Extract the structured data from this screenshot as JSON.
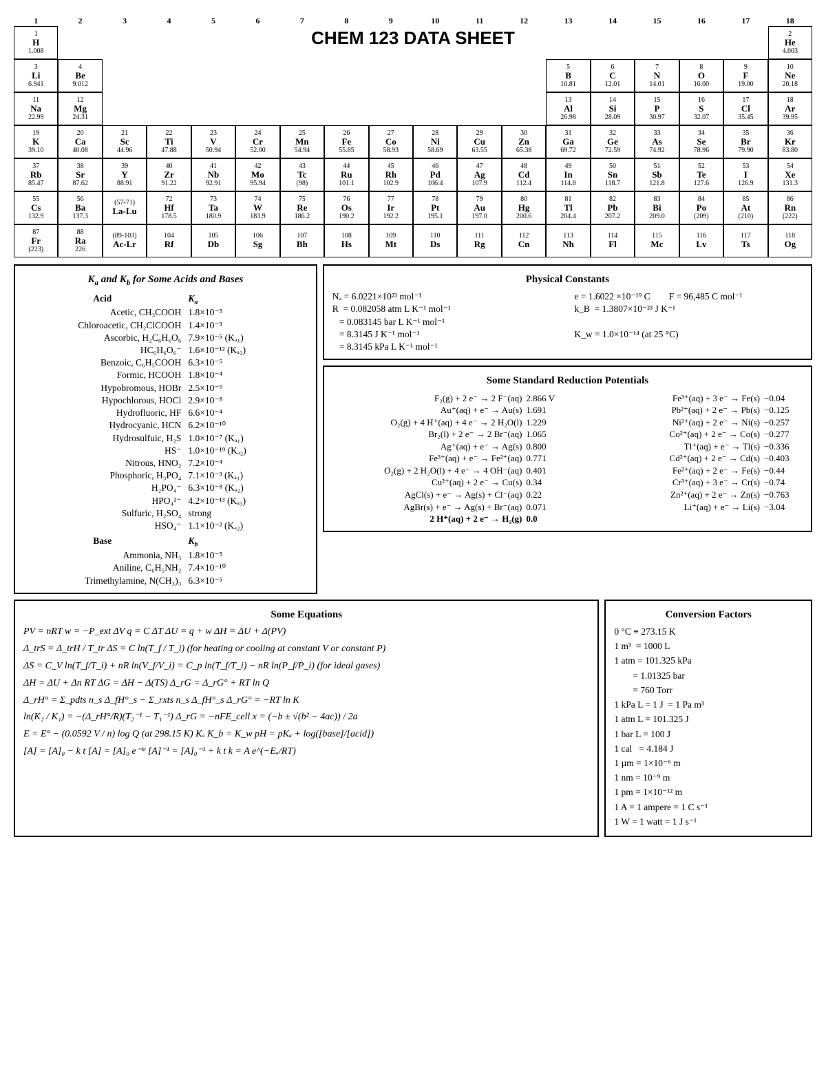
{
  "title": "CHEM 123 DATA SHEET",
  "periodic": {
    "groups": [
      1,
      2,
      3,
      4,
      5,
      6,
      7,
      8,
      9,
      10,
      11,
      12,
      13,
      14,
      15,
      16,
      17,
      18
    ],
    "elements": [
      {
        "z": 1,
        "sym": "H",
        "m": "1.008",
        "r": 1,
        "c": 1
      },
      {
        "z": 2,
        "sym": "He",
        "m": "4.003",
        "r": 1,
        "c": 18
      },
      {
        "z": 3,
        "sym": "Li",
        "m": "6.941",
        "r": 2,
        "c": 1
      },
      {
        "z": 4,
        "sym": "Be",
        "m": "9.012",
        "r": 2,
        "c": 2
      },
      {
        "z": 5,
        "sym": "B",
        "m": "10.81",
        "r": 2,
        "c": 13
      },
      {
        "z": 6,
        "sym": "C",
        "m": "12.01",
        "r": 2,
        "c": 14
      },
      {
        "z": 7,
        "sym": "N",
        "m": "14.01",
        "r": 2,
        "c": 15
      },
      {
        "z": 8,
        "sym": "O",
        "m": "16.00",
        "r": 2,
        "c": 16
      },
      {
        "z": 9,
        "sym": "F",
        "m": "19.00",
        "r": 2,
        "c": 17
      },
      {
        "z": 10,
        "sym": "Ne",
        "m": "20.18",
        "r": 2,
        "c": 18
      },
      {
        "z": 11,
        "sym": "Na",
        "m": "22.99",
        "r": 3,
        "c": 1
      },
      {
        "z": 12,
        "sym": "Mg",
        "m": "24.31",
        "r": 3,
        "c": 2
      },
      {
        "z": 13,
        "sym": "Al",
        "m": "26.98",
        "r": 3,
        "c": 13
      },
      {
        "z": 14,
        "sym": "Si",
        "m": "28.09",
        "r": 3,
        "c": 14
      },
      {
        "z": 15,
        "sym": "P",
        "m": "30.97",
        "r": 3,
        "c": 15
      },
      {
        "z": 16,
        "sym": "S",
        "m": "32.07",
        "r": 3,
        "c": 16
      },
      {
        "z": 17,
        "sym": "Cl",
        "m": "35.45",
        "r": 3,
        "c": 17
      },
      {
        "z": 18,
        "sym": "Ar",
        "m": "39.95",
        "r": 3,
        "c": 18
      },
      {
        "z": 19,
        "sym": "K",
        "m": "39.10",
        "r": 4,
        "c": 1
      },
      {
        "z": 20,
        "sym": "Ca",
        "m": "40.08",
        "r": 4,
        "c": 2
      },
      {
        "z": 21,
        "sym": "Sc",
        "m": "44.96",
        "r": 4,
        "c": 3
      },
      {
        "z": 22,
        "sym": "Ti",
        "m": "47.88",
        "r": 4,
        "c": 4
      },
      {
        "z": 23,
        "sym": "V",
        "m": "50.94",
        "r": 4,
        "c": 5
      },
      {
        "z": 24,
        "sym": "Cr",
        "m": "52.00",
        "r": 4,
        "c": 6
      },
      {
        "z": 25,
        "sym": "Mn",
        "m": "54.94",
        "r": 4,
        "c": 7
      },
      {
        "z": 26,
        "sym": "Fe",
        "m": "55.85",
        "r": 4,
        "c": 8
      },
      {
        "z": 27,
        "sym": "Co",
        "m": "58.93",
        "r": 4,
        "c": 9
      },
      {
        "z": 28,
        "sym": "Ni",
        "m": "58.69",
        "r": 4,
        "c": 10
      },
      {
        "z": 29,
        "sym": "Cu",
        "m": "63.55",
        "r": 4,
        "c": 11
      },
      {
        "z": 30,
        "sym": "Zn",
        "m": "65.38",
        "r": 4,
        "c": 12
      },
      {
        "z": 31,
        "sym": "Ga",
        "m": "69.72",
        "r": 4,
        "c": 13
      },
      {
        "z": 32,
        "sym": "Ge",
        "m": "72.59",
        "r": 4,
        "c": 14
      },
      {
        "z": 33,
        "sym": "As",
        "m": "74.92",
        "r": 4,
        "c": 15
      },
      {
        "z": 34,
        "sym": "Se",
        "m": "78.96",
        "r": 4,
        "c": 16
      },
      {
        "z": 35,
        "sym": "Br",
        "m": "79.90",
        "r": 4,
        "c": 17
      },
      {
        "z": 36,
        "sym": "Kr",
        "m": "83.80",
        "r": 4,
        "c": 18
      },
      {
        "z": 37,
        "sym": "Rb",
        "m": "85.47",
        "r": 5,
        "c": 1
      },
      {
        "z": 38,
        "sym": "Sr",
        "m": "87.62",
        "r": 5,
        "c": 2
      },
      {
        "z": 39,
        "sym": "Y",
        "m": "88.91",
        "r": 5,
        "c": 3
      },
      {
        "z": 40,
        "sym": "Zr",
        "m": "91.22",
        "r": 5,
        "c": 4
      },
      {
        "z": 41,
        "sym": "Nb",
        "m": "92.91",
        "r": 5,
        "c": 5
      },
      {
        "z": 42,
        "sym": "Mo",
        "m": "95.94",
        "r": 5,
        "c": 6
      },
      {
        "z": 43,
        "sym": "Tc",
        "m": "(98)",
        "r": 5,
        "c": 7
      },
      {
        "z": 44,
        "sym": "Ru",
        "m": "101.1",
        "r": 5,
        "c": 8
      },
      {
        "z": 45,
        "sym": "Rh",
        "m": "102.9",
        "r": 5,
        "c": 9
      },
      {
        "z": 46,
        "sym": "Pd",
        "m": "106.4",
        "r": 5,
        "c": 10
      },
      {
        "z": 47,
        "sym": "Ag",
        "m": "107.9",
        "r": 5,
        "c": 11
      },
      {
        "z": 48,
        "sym": "Cd",
        "m": "112.4",
        "r": 5,
        "c": 12
      },
      {
        "z": 49,
        "sym": "In",
        "m": "114.8",
        "r": 5,
        "c": 13
      },
      {
        "z": 50,
        "sym": "Sn",
        "m": "118.7",
        "r": 5,
        "c": 14
      },
      {
        "z": 51,
        "sym": "Sb",
        "m": "121.8",
        "r": 5,
        "c": 15
      },
      {
        "z": 52,
        "sym": "Te",
        "m": "127.6",
        "r": 5,
        "c": 16
      },
      {
        "z": 53,
        "sym": "I",
        "m": "126.9",
        "r": 5,
        "c": 17
      },
      {
        "z": 54,
        "sym": "Xe",
        "m": "131.3",
        "r": 5,
        "c": 18
      },
      {
        "z": 55,
        "sym": "Cs",
        "m": "132.9",
        "r": 6,
        "c": 1
      },
      {
        "z": 56,
        "sym": "Ba",
        "m": "137.3",
        "r": 6,
        "c": 2
      },
      {
        "z": "(57-71)",
        "sym": "La-Lu",
        "m": "",
        "r": 6,
        "c": 3
      },
      {
        "z": 72,
        "sym": "Hf",
        "m": "178.5",
        "r": 6,
        "c": 4
      },
      {
        "z": 73,
        "sym": "Ta",
        "m": "180.9",
        "r": 6,
        "c": 5
      },
      {
        "z": 74,
        "sym": "W",
        "m": "183.9",
        "r": 6,
        "c": 6
      },
      {
        "z": 75,
        "sym": "Re",
        "m": "186.2",
        "r": 6,
        "c": 7
      },
      {
        "z": 76,
        "sym": "Os",
        "m": "190.2",
        "r": 6,
        "c": 8
      },
      {
        "z": 77,
        "sym": "Ir",
        "m": "192.2",
        "r": 6,
        "c": 9
      },
      {
        "z": 78,
        "sym": "Pt",
        "m": "195.1",
        "r": 6,
        "c": 10
      },
      {
        "z": 79,
        "sym": "Au",
        "m": "197.0",
        "r": 6,
        "c": 11
      },
      {
        "z": 80,
        "sym": "Hg",
        "m": "200.6",
        "r": 6,
        "c": 12
      },
      {
        "z": 81,
        "sym": "Tl",
        "m": "204.4",
        "r": 6,
        "c": 13
      },
      {
        "z": 82,
        "sym": "Pb",
        "m": "207.2",
        "r": 6,
        "c": 14
      },
      {
        "z": 83,
        "sym": "Bi",
        "m": "209.0",
        "r": 6,
        "c": 15
      },
      {
        "z": 84,
        "sym": "Po",
        "m": "(209)",
        "r": 6,
        "c": 16
      },
      {
        "z": 85,
        "sym": "At",
        "m": "(210)",
        "r": 6,
        "c": 17
      },
      {
        "z": 86,
        "sym": "Rn",
        "m": "(222)",
        "r": 6,
        "c": 18
      },
      {
        "z": 87,
        "sym": "Fr",
        "m": "(223)",
        "r": 7,
        "c": 1
      },
      {
        "z": 88,
        "sym": "Ra",
        "m": "226",
        "r": 7,
        "c": 2
      },
      {
        "z": "(89-103)",
        "sym": "Ac-Lr",
        "m": "",
        "r": 7,
        "c": 3
      },
      {
        "z": 104,
        "sym": "Rf",
        "m": "",
        "r": 7,
        "c": 4
      },
      {
        "z": 105,
        "sym": "Db",
        "m": "",
        "r": 7,
        "c": 5
      },
      {
        "z": 106,
        "sym": "Sg",
        "m": "",
        "r": 7,
        "c": 6
      },
      {
        "z": 107,
        "sym": "Bh",
        "m": "",
        "r": 7,
        "c": 7
      },
      {
        "z": 108,
        "sym": "Hs",
        "m": "",
        "r": 7,
        "c": 8
      },
      {
        "z": 109,
        "sym": "Mt",
        "m": "",
        "r": 7,
        "c": 9
      },
      {
        "z": 110,
        "sym": "Ds",
        "m": "",
        "r": 7,
        "c": 10
      },
      {
        "z": 111,
        "sym": "Rg",
        "m": "",
        "r": 7,
        "c": 11
      },
      {
        "z": 112,
        "sym": "Cn",
        "m": "",
        "r": 7,
        "c": 12
      },
      {
        "z": 113,
        "sym": "Nh",
        "m": "",
        "r": 7,
        "c": 13
      },
      {
        "z": 114,
        "sym": "Fl",
        "m": "",
        "r": 7,
        "c": 14
      },
      {
        "z": 115,
        "sym": "Mc",
        "m": "",
        "r": 7,
        "c": 15
      },
      {
        "z": 116,
        "sym": "Lv",
        "m": "",
        "r": 7,
        "c": 16
      },
      {
        "z": 117,
        "sym": "Ts",
        "m": "",
        "r": 7,
        "c": 17
      },
      {
        "z": 118,
        "sym": "Og",
        "m": "",
        "r": 7,
        "c": 18
      }
    ]
  },
  "acids_box": {
    "title": "Kₐ and K_b for Some Acids and Bases",
    "header_acid": "Acid",
    "header_ka": "Kₐ",
    "header_base": "Base",
    "header_kb": "K_b",
    "acids": [
      {
        "name": "Acetic, CH₃COOH",
        "k": "1.8×10⁻⁵"
      },
      {
        "name": "Chloroacetic, CH₂ClCOOH",
        "k": "1.4×10⁻³"
      },
      {
        "name": "Ascorbic, H₂C₆H₆O₆",
        "k": "7.9×10⁻⁵  (Kₐ₁)"
      },
      {
        "name": "HC₆H₆O₆⁻",
        "k": "1.6×10⁻¹²  (Kₐ₂)"
      },
      {
        "name": "Benzoic, C₆H₅COOH",
        "k": "6.3×10⁻⁵"
      },
      {
        "name": "Formic, HCOOH",
        "k": "1.8×10⁻⁴"
      },
      {
        "name": "Hypobromous, HOBr",
        "k": "2.5×10⁻⁹"
      },
      {
        "name": "Hypochlorous, HOCl",
        "k": "2.9×10⁻⁸"
      },
      {
        "name": "Hydrofluoric, HF",
        "k": "6.6×10⁻⁴"
      },
      {
        "name": "Hydrocyanic, HCN",
        "k": "6.2×10⁻¹⁰"
      },
      {
        "name": "Hydrosulfuic, H₂S",
        "k": "1.0×10⁻⁷  (Kₐ₁)"
      },
      {
        "name": "HS⁻",
        "k": "1.0×10⁻¹⁹  (Kₐ₂)"
      },
      {
        "name": "Nitrous, HNO₂",
        "k": "7.2×10⁻⁴"
      },
      {
        "name": "Phosphoric, H₃PO₄",
        "k": "7.1×10⁻³  (Kₐ₁)"
      },
      {
        "name": "H₂PO₄⁻",
        "k": "6.3×10⁻⁸  (Kₐ₂)"
      },
      {
        "name": "HPO₄²⁻",
        "k": "4.2×10⁻¹³  (Kₐ₃)"
      },
      {
        "name": "Sulfuric, H₂SO₄",
        "k": "strong"
      },
      {
        "name": "HSO₄⁻",
        "k": "1.1×10⁻²  (Kₐ₂)"
      }
    ],
    "bases": [
      {
        "name": "Ammonia, NH₃",
        "k": "1.8×10⁻⁵"
      },
      {
        "name": "Aniline, C₆H₅NH₂",
        "k": "7.4×10⁻¹⁰"
      },
      {
        "name": "Trimethylamine, N(CH₃)₃",
        "k": "6.3×10⁻⁵"
      }
    ]
  },
  "constants": {
    "title": "Physical Constants",
    "left": [
      "Nₐ = 6.0221×10²³ mol⁻¹",
      "R  = 0.082058 atm L K⁻¹ mol⁻¹",
      "   = 0.083145 bar L K⁻¹ mol⁻¹",
      "   = 8.3145 J K⁻¹ mol⁻¹",
      "   = 8.3145 kPa L K⁻¹ mol⁻¹"
    ],
    "right": [
      "e = 1.6022 ×10⁻¹⁹ C        F = 96,485 C mol⁻¹",
      "k_B  = 1.3807×10⁻²³ J K⁻¹",
      "",
      "K_w = 1.0×10⁻¹⁴ (at 25 °C)"
    ]
  },
  "srp": {
    "title": "Some Standard Reduction Potentials",
    "left": [
      {
        "eq": "F₂(g) + 2 e⁻ → 2 F⁻(aq)",
        "v": "2.866 V"
      },
      {
        "eq": "Au⁺(aq) + e⁻ → Au(s)",
        "v": "1.691"
      },
      {
        "eq": "O₂(g) + 4 H⁺(aq) + 4 e⁻ → 2 H₂O(l)",
        "v": "1.229"
      },
      {
        "eq": "Br₂(l) + 2 e⁻ → 2 Br⁻(aq)",
        "v": "1.065"
      },
      {
        "eq": "Ag⁺(aq) + e⁻ → Ag(s)",
        "v": "0.800"
      },
      {
        "eq": "Fe³⁺(aq) + e⁻ → Fe²⁺(aq)",
        "v": "0.771"
      },
      {
        "eq": "O₂(g) + 2 H₂O(l) + 4 e⁻ → 4 OH⁻(aq)",
        "v": "0.401"
      },
      {
        "eq": "Cu²⁺(aq) + 2 e⁻ → Cu(s)",
        "v": "0.34"
      },
      {
        "eq": "AgCl(s) + e⁻ → Ag(s) + Cl⁻(aq)",
        "v": "0.22"
      },
      {
        "eq": "AgBr(s) + e⁻ → Ag(s) + Br⁻(aq)",
        "v": "0.071"
      },
      {
        "eq": "2 H⁺(aq) + 2 e⁻ → H₂(g)",
        "v": "0.0",
        "bold": true
      }
    ],
    "right": [
      {
        "eq": "Fe³⁺(aq) + 3 e⁻ → Fe(s)",
        "v": "−0.04"
      },
      {
        "eq": "Pb²⁺(aq) + 2 e⁻ → Pb(s)",
        "v": "−0.125"
      },
      {
        "eq": "Ni²⁺(aq) + 2 e⁻  → Ni(s)",
        "v": "−0.257"
      },
      {
        "eq": "Co²⁺(aq) + 2 e⁻  → Co(s)",
        "v": "−0.277"
      },
      {
        "eq": "Tl⁺(aq) + e⁻  → Tl(s)",
        "v": "−0.336"
      },
      {
        "eq": "Cd²⁺(aq) + 2 e⁻  → Cd(s)",
        "v": "−0.403"
      },
      {
        "eq": "Fe²⁺(aq) + 2 e⁻  → Fe(s)",
        "v": "−0.44"
      },
      {
        "eq": "Cr³⁺(aq) + 3 e⁻  → Cr(s)",
        "v": "−0.74"
      },
      {
        "eq": "Zn²⁺(aq) + 2 e⁻ → Zn(s)",
        "v": "−0.763"
      },
      {
        "eq": "Li⁺(aq) + e⁻ → Li(s)",
        "v": "−3.04"
      }
    ]
  },
  "equations": {
    "title": "Some Equations",
    "lines": [
      "PV = nRT      w = −P_ext ΔV      q = C ΔT      ΔU = q + w      ΔH = ΔU + Δ(PV)",
      "Δ_trS = Δ_trH / T_tr      ΔS = C ln(T_f / T_i)   (for heating or cooling at constant V or constant P)",
      "ΔS = C_V ln(T_f/T_i) + nR ln(V_f/V_i) = C_p ln(T_f/T_i) − nR ln(P_f/P_i)   (for ideal gases)",
      "ΔH = ΔU + Δn RT        ΔG = ΔH − Δ(TS)        Δ_rG = Δ_rG° + RT ln Q",
      "Δ_rH° = Σ_pdts n_s Δ_fH°_s − Σ_rxts n_s Δ_fH°_s       Δ_rG° = −RT ln K",
      "ln(K₂ / K₁) = −(Δ_rH°/R)(T₂⁻¹ − T₁⁻¹)        Δ_rG = −nFE_cell        x = (−b ± √(b² − 4ac)) / 2a",
      "E = E° − (0.0592 V / n) log Q   (at 298.15 K)     Kₐ K_b = K_w     pH = pKₐ + log([base]/[acid])",
      "[A] = [A]₀ − k t        [A] = [A]₀ e⁻ᵏᵗ        [A]⁻¹ = [A]₀⁻¹ + k t        k = A e^(−Eₐ/RT)"
    ]
  },
  "conversions": {
    "title": "Conversion Factors",
    "lines": [
      "0 °C ≡ 273.15 K",
      "1 m³  = 1000 L",
      "1 atm = 101.325 kPa",
      "        = 1.01325 bar",
      "        = 760 Torr",
      "1 kPa L = 1 J  = 1 Pa m³",
      "1 atm L = 101.325 J",
      "1 bar L = 100 J",
      "1 cal   = 4.184 J",
      "1 µm = 1×10⁻⁶ m",
      "1 nm = 10⁻⁹ m",
      "1 pm = 1×10⁻¹² m",
      "1 A = 1 ampere = 1 C s⁻¹",
      "1 W = 1 watt = 1 J s⁻¹"
    ]
  }
}
